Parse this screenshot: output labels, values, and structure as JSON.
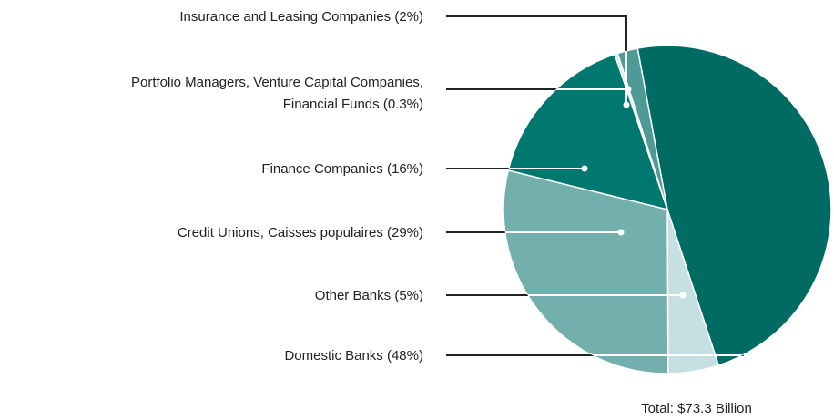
{
  "chart_data": {
    "type": "pie",
    "categories": [
      "Domestic Banks (48%)",
      "Other Banks (5%)",
      "Credit Unions, Caisses populaires (29%)",
      "Finance Companies (16%)",
      "Portfolio Managers, Venture Capital Companies,\nFinancial Funds  (0.3%)",
      "Insurance and Leasing Companies (2%)"
    ],
    "values": [
      48,
      5,
      29,
      16,
      0.3,
      2
    ],
    "colors": [
      "#006b63",
      "#c6dfe0",
      "#73afad",
      "#00786f",
      "#d9ecea",
      "#4d9a96"
    ],
    "annotation": "Total: $73.3 Billion"
  }
}
